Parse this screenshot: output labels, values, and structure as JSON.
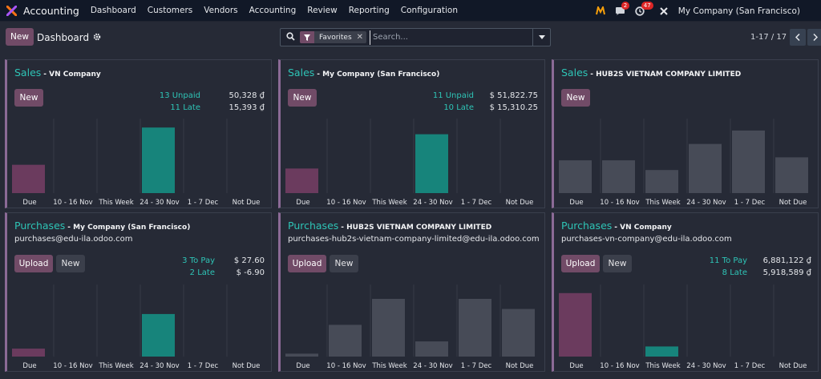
{
  "navbar": {
    "app_title": "Accounting",
    "menu": [
      "Dashboard",
      "Customers",
      "Vendors",
      "Accounting",
      "Review",
      "Reporting",
      "Configuration"
    ],
    "messages_badge": "2",
    "activity_badge": "47",
    "company": "My Company (San Francisco)"
  },
  "control": {
    "new_label": "New",
    "breadcrumb": "Dashboard",
    "facet_label": "Favorites",
    "search_placeholder": "Search...",
    "pager": "1-17 / 17"
  },
  "cards": [
    {
      "journal": "Sales",
      "company": "- VN Company",
      "email": "",
      "buttons": [
        "New"
      ],
      "stats": [
        {
          "label": "13 Unpaid",
          "amount": "50,328 ₫"
        },
        {
          "label": "11 Late",
          "amount": "15,393 ₫"
        }
      ],
      "chart_data": {
        "type": "bar",
        "categories": [
          "Due",
          "10 - 16 Nov",
          "This Week",
          "24 - 30 Nov",
          "1 - 7 Dec",
          "Not Due"
        ],
        "values": [
          38,
          0,
          0,
          88,
          0,
          0
        ],
        "colors": [
          "#6b3b5e",
          "#6b3b5e",
          "#6b3b5e",
          "#17847b",
          "#6b3b5e",
          "#6b3b5e"
        ]
      }
    },
    {
      "journal": "Sales",
      "company": "- My Company (San Francisco)",
      "email": "",
      "buttons": [
        "New"
      ],
      "stats": [
        {
          "label": "11 Unpaid",
          "amount": "$ 51,822.75"
        },
        {
          "label": "10 Late",
          "amount": "$ 15,310.25"
        }
      ],
      "chart_data": {
        "type": "bar",
        "categories": [
          "Due",
          "10 - 16 Nov",
          "This Week",
          "24 - 30 Nov",
          "1 - 7 Dec",
          "Not Due"
        ],
        "values": [
          33,
          0,
          0,
          79,
          0,
          0
        ],
        "colors": [
          "#6b3b5e",
          "#6b3b5e",
          "#6b3b5e",
          "#17847b",
          "#6b3b5e",
          "#6b3b5e"
        ]
      }
    },
    {
      "journal": "Sales",
      "company": "- HUB2S VIETNAM COMPANY LIMITED",
      "email": "",
      "buttons": [
        "New"
      ],
      "stats": [],
      "chart_data": {
        "type": "bar",
        "categories": [
          "Due",
          "10 - 16 Nov",
          "This Week",
          "24 - 30 Nov",
          "1 - 7 Dec",
          "Not Due"
        ],
        "values": [
          44,
          44,
          31,
          66,
          84,
          48
        ],
        "colors": [
          "#474b57",
          "#474b57",
          "#474b57",
          "#474b57",
          "#474b57",
          "#474b57"
        ]
      }
    },
    {
      "journal": "Purchases",
      "company": "- My Company (San Francisco)",
      "email": "purchases@edu-ila.odoo.com",
      "buttons": [
        "Upload",
        "New"
      ],
      "stats": [
        {
          "label": "3 To Pay",
          "amount": "$ 27.60"
        },
        {
          "label": "2 Late",
          "amount": "$ -6.90"
        }
      ],
      "chart_data": {
        "type": "bar",
        "categories": [
          "Due",
          "10 - 16 Nov",
          "This Week",
          "24 - 30 Nov",
          "1 - 7 Dec",
          "Not Due"
        ],
        "values": [
          11,
          0,
          0,
          59,
          0,
          0
        ],
        "colors": [
          "#6b3b5e",
          "#6b3b5e",
          "#6b3b5e",
          "#17847b",
          "#6b3b5e",
          "#6b3b5e"
        ]
      }
    },
    {
      "journal": "Purchases",
      "company": "- HUB2S VIETNAM COMPANY LIMITED",
      "email": "purchases-hub2s-vietnam-company-limited@edu-ila.odoo.com",
      "buttons": [
        "Upload",
        "New"
      ],
      "stats": [],
      "chart_data": {
        "type": "bar",
        "categories": [
          "Due",
          "10 - 16 Nov",
          "This Week",
          "24 - 30 Nov",
          "1 - 7 Dec",
          "Not Due"
        ],
        "values": [
          4,
          44,
          80,
          21,
          80,
          66
        ],
        "colors": [
          "#474b57",
          "#474b57",
          "#474b57",
          "#474b57",
          "#474b57",
          "#474b57"
        ]
      }
    },
    {
      "journal": "Purchases",
      "company": "- VN Company",
      "email": "purchases-vn-company@edu-ila.odoo.com",
      "buttons": [
        "Upload",
        "New"
      ],
      "stats": [
        {
          "label": "11 To Pay",
          "amount": "6,881,122 ₫"
        },
        {
          "label": "8 Late",
          "amount": "5,918,589 ₫"
        }
      ],
      "chart_data": {
        "type": "bar",
        "categories": [
          "Due",
          "10 - 16 Nov",
          "This Week",
          "24 - 30 Nov",
          "1 - 7 Dec",
          "Not Due"
        ],
        "values": [
          88,
          0,
          14,
          0,
          0,
          0
        ],
        "colors": [
          "#6b3b5e",
          "#6b3b5e",
          "#17847b",
          "#6b3b5e",
          "#6b3b5e",
          "#6b3b5e"
        ]
      }
    }
  ]
}
